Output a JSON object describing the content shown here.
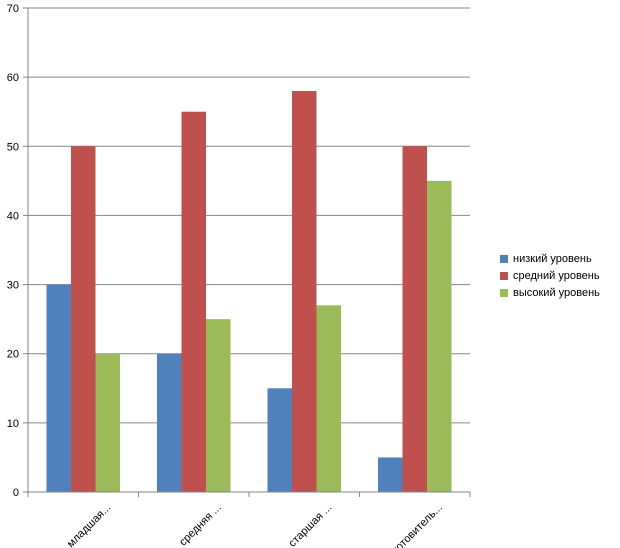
{
  "chart_data": {
    "type": "bar",
    "categories": [
      "младшая...",
      "средняя ...",
      "старшая ...",
      "готовитель..."
    ],
    "series": [
      {
        "name": "низкий уровень",
        "values": [
          30,
          20,
          15,
          5
        ],
        "color": "#4F81BD"
      },
      {
        "name": "средний уровень",
        "values": [
          50,
          55,
          58,
          50
        ],
        "color": "#C0504D"
      },
      {
        "name": "высокий уровень",
        "values": [
          20,
          25,
          27,
          45
        ],
        "color": "#9BBB59"
      }
    ],
    "ylim": [
      0,
      70
    ],
    "yticks": [
      0,
      10,
      20,
      30,
      40,
      50,
      60,
      70
    ],
    "grid": true,
    "legend_position": "right"
  }
}
